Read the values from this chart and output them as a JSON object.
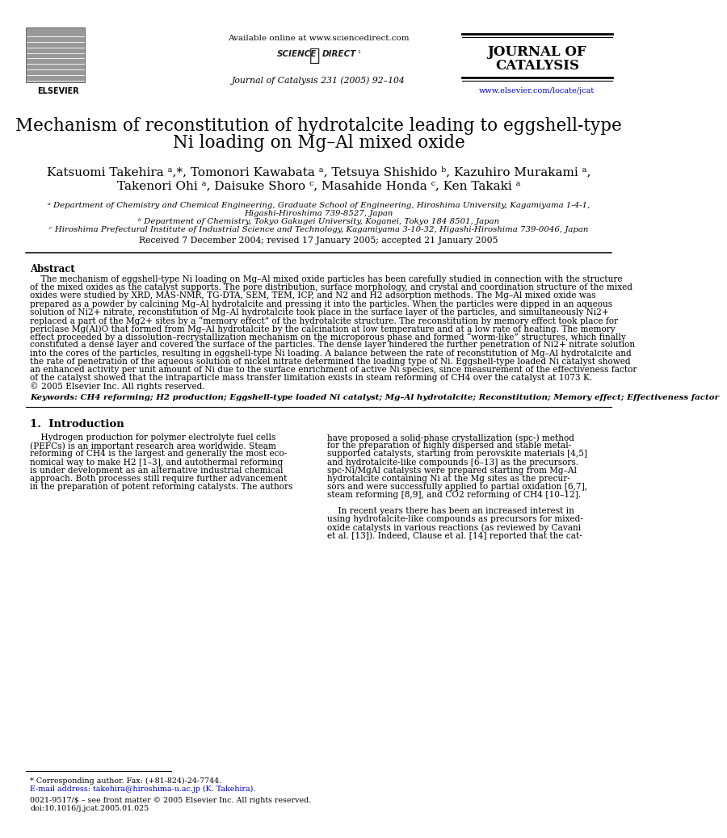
{
  "title_line1": "Mechanism of reconstitution of hydrotalcite leading to eggshell-type",
  "title_line2": "Ni loading on Mg–Al mixed oxide",
  "authors_line1": "Katsuomi Takehira ᵃ,*, Tomonori Kawabata ᵃ, Tetsuya Shishido ᵇ, Kazuhiro Murakami ᵃ,",
  "authors_line2": "Takenori Ohi ᵃ, Daisuke Shoro ᶜ, Masahide Honda ᶜ, Ken Takaki ᵃ",
  "affil_a": "ᵃ Department of Chemistry and Chemical Engineering, Graduate School of Engineering, Hiroshima University, Kagamiyama 1-4-1,",
  "affil_a2": "Higashi-Hiroshima 739-8527, Japan",
  "affil_b": "ᵇ Department of Chemistry, Tokyo Gakugei University, Koganei, Tokyo 184 8501, Japan",
  "affil_c": "ᶜ Hiroshima Prefectural Institute of Industrial Science and Technology, Kagamiyama 3-10-32, Higashi-Hiroshima 739-0046, Japan",
  "received": "Received 7 December 2004; revised 17 January 2005; accepted 21 January 2005",
  "header_available": "Available online at www.sciencedirect.com",
  "header_journal": "Journal of Catalysis 231 (2005) 92–104",
  "header_journal_name_line1": "JOURNAL OF",
  "header_journal_name_line2": "CATALYSIS",
  "header_url": "www.elsevier.com/locate/jcat",
  "abstract_title": "Abstract",
  "abstract_lines": [
    "    The mechanism of eggshell-type Ni loading on Mg–Al mixed oxide particles has been carefully studied in connection with the structure",
    "of the mixed oxides as the catalyst supports. The pore distribution, surface morphology, and crystal and coordination structure of the mixed",
    "oxides were studied by XRD, MAS-NMR, TG-DTA, SEM, TEM, ICP, and N2 and H2 adsorption methods. The Mg–Al mixed oxide was",
    "prepared as a powder by calcining Mg–Al hydrotalcite and pressing it into the particles. When the particles were dipped in an aqueous",
    "solution of Ni2+ nitrate, reconstitution of Mg–Al hydrotalcite took place in the surface layer of the particles, and simultaneously Ni2+",
    "replaced a part of the Mg2+ sites by a “memory effect” of the hydrotalcite structure. The reconstitution by memory effect took place for",
    "periclase Mg(Al)O that formed from Mg–Al hydrotalcite by the calcination at low temperature and at a low rate of heating. The memory",
    "effect proceeded by a dissolution–recrystallization mechanism on the microporous phase and formed “worm-like” structures, which finally",
    "constituted a dense layer and covered the surface of the particles. The dense layer hindered the further penetration of Ni2+ nitrate solution",
    "into the cores of the particles, resulting in eggshell-type Ni loading. A balance between the rate of reconstitution of Mg–Al hydrotalcite and",
    "the rate of penetration of the aqueous solution of nickel nitrate determined the loading type of Ni. Eggshell-type loaded Ni catalyst showed",
    "an enhanced activity per unit amount of Ni due to the surface enrichment of active Ni species, since measurement of the effectiveness factor",
    "of the catalyst showed that the intraparticle mass transfer limitation exists in steam reforming of CH4 over the catalyst at 1073 K.",
    "© 2005 Elsevier Inc. All rights reserved."
  ],
  "keywords": "Keywords: CH4 reforming; H2 production; Eggshell-type loaded Ni catalyst; Mg–Al hydrotalcite; Reconstitution; Memory effect; Effectiveness factor",
  "section1_title": "1.  Introduction",
  "intro_left_lines": [
    "    Hydrogen production for polymer electrolyte fuel cells",
    "(PEFCs) is an important research area worldwide. Steam",
    "reforming of CH4 is the largest and generally the most eco-",
    "nomical way to make H2 [1–3], and autothermal reforming",
    "is under development as an alternative industrial chemical",
    "approach. Both processes still require further advancement",
    "in the preparation of potent reforming catalysts. The authors"
  ],
  "intro_right_lines": [
    "have proposed a solid-phase crystallization (spc-) method",
    "for the preparation of highly dispersed and stable metal-",
    "supported catalysts, starting from perovskite materials [4,5]",
    "and hydrotalcite-like compounds [6–13] as the precursors.",
    "spc-Ni/MgAl catalysts were prepared starting from Mg–Al",
    "hydrotalcite containing Ni at the Mg sites as the precur-",
    "sors and were successfully applied to partial oxidation [6,7],",
    "steam reforming [8,9], and CO2 reforming of CH4 [10–12].",
    "",
    "    In recent years there has been an increased interest in",
    "using hydrotalcite-like compounds as precursors for mixed-",
    "oxide catalysts in various reactions (as reviewed by Cavani",
    "et al. [13]). Indeed, Clause et al. [14] reported that the cat-"
  ],
  "footnote1": "* Corresponding author. Fax: (+81-824)-24-7744.",
  "footnote2": "E-mail address: takehira@hiroshima-u.ac.jp (K. Takehira).",
  "footnote3": "0021-9517/$ – see front matter © 2005 Elsevier Inc. All rights reserved.",
  "footnote4": "doi:10.1016/j.jcat.2005.01.025",
  "bg_color": "#ffffff",
  "text_color": "#000000",
  "blue_color": "#0000cc"
}
